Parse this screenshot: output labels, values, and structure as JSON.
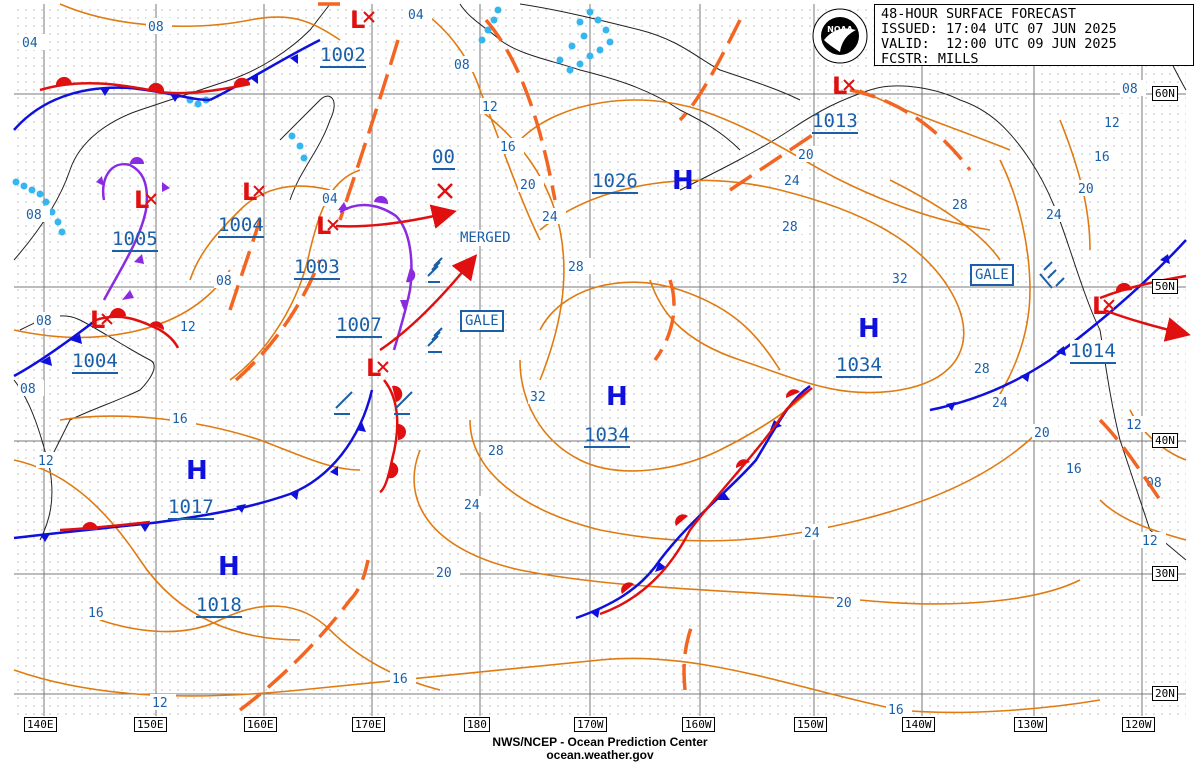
{
  "title_box": {
    "line1": "48-HOUR SURFACE FORECAST",
    "line2": "ISSUED: 17:04 UTC 07 JUN 2025",
    "line3": "VALID:  12:00 UTC 09 JUN 2025",
    "line4": "FCSTR: MILLS"
  },
  "credit": {
    "line1": "NWS/NCEP - Ocean Prediction Center",
    "line2": "ocean.weather.gov"
  },
  "logo": "noaa-logo",
  "longitude_labels": [
    "140E",
    "150E",
    "160E",
    "170E",
    "180",
    "170W",
    "160W",
    "150W",
    "140W",
    "130W",
    "120W"
  ],
  "latitude_labels": [
    "60N",
    "50N",
    "40N",
    "30N",
    "20N"
  ],
  "pressure_systems": [
    {
      "type": "L",
      "value": "1002"
    },
    {
      "type": "L",
      "value": "1005"
    },
    {
      "type": "L",
      "value": "1004"
    },
    {
      "type": "L",
      "value": "1003"
    },
    {
      "type": "L",
      "value": "1007"
    },
    {
      "type": "L",
      "value": "1004"
    },
    {
      "type": "L",
      "value": "00"
    },
    {
      "type": "H",
      "value": "1026"
    },
    {
      "type": "L",
      "value": "1013"
    },
    {
      "type": "H",
      "value": "1034"
    },
    {
      "type": "H",
      "value": "1034"
    },
    {
      "type": "H",
      "value": "1017"
    },
    {
      "type": "H",
      "value": "1018"
    },
    {
      "type": "L",
      "value": "1014"
    }
  ],
  "warnings": {
    "gale": "GALE",
    "merged": "MERGED"
  },
  "isobar_labels": [
    "04",
    "08",
    "12",
    "16",
    "20",
    "24",
    "28",
    "32"
  ],
  "colors": {
    "isobar": "#e07b12",
    "front_cold": "#1010dd",
    "front_warm": "#e01010",
    "front_occluded": "#8a2be2",
    "trough": "#f26522",
    "ice": "#35b6ef",
    "label_blue": "#1a5fa8",
    "grid": "#888888"
  }
}
